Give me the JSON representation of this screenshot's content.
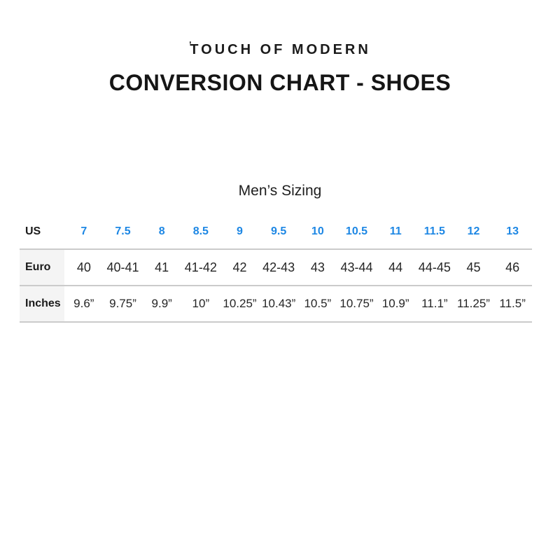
{
  "logo": {
    "mark": "ʹ",
    "text": "TOUCH OF MODERN"
  },
  "title": "CONVERSION CHART - SHOES",
  "section_label": "Men’s Sizing",
  "colors": {
    "accent_blue": "#1d87e4",
    "divider_gray": "#cbcbcb",
    "label_cell_bg": "#f4f4f4",
    "text": "#1e1e1e"
  },
  "chart_data": {
    "type": "table",
    "title": "CONVERSION CHART - SHOES",
    "subtitle": "Men’s Sizing",
    "rows": [
      {
        "label": "US",
        "values": [
          "7",
          "7.5",
          "8",
          "8.5",
          "9",
          "9.5",
          "10",
          "10.5",
          "11",
          "11.5",
          "12",
          "13"
        ]
      },
      {
        "label": "Euro",
        "values": [
          "40",
          "40-41",
          "41",
          "41-42",
          "42",
          "42-43",
          "43",
          "43-44",
          "44",
          "44-45",
          "45",
          "46"
        ]
      },
      {
        "label": "Inches",
        "values": [
          "9.6”",
          "9.75”",
          "9.9”",
          "10”",
          "10.25”",
          "10.43”",
          "10.5”",
          "10.75”",
          "10.9”",
          "11.1”",
          "11.25”",
          "11.5”"
        ]
      }
    ]
  }
}
